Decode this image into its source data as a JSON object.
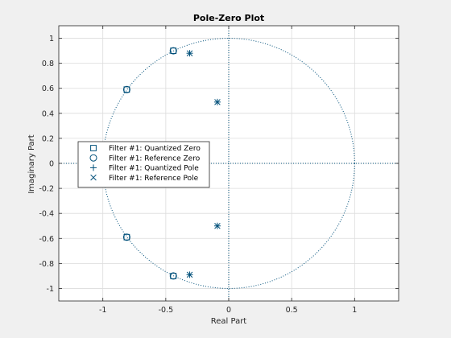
{
  "colors": {
    "figure_bg": "#f0f0f0",
    "axes_bg": "#ffffff",
    "marker": "#00507a",
    "grid": "#dcdcdc",
    "axis": "#262626"
  },
  "chart_data": {
    "type": "scatter",
    "title": "Pole-Zero Plot",
    "xlabel": "Real Part",
    "ylabel": "Imaginary Part",
    "xlim": [
      -1.35,
      1.35
    ],
    "ylim": [
      -1.1,
      1.1
    ],
    "xticks": [
      -1,
      -0.5,
      0,
      0.5,
      1
    ],
    "xtick_labels": [
      "-1",
      "-0.5",
      "0",
      "0.5",
      "1"
    ],
    "yticks": [
      1,
      0.8,
      0.6,
      0.4,
      0.2,
      0,
      -0.2,
      -0.4,
      -0.6,
      -0.8,
      -1
    ],
    "ytick_labels": [
      "1",
      "0.8",
      "0.6",
      "0.4",
      "0.2",
      "0",
      "-0.2",
      "-0.4",
      "-0.6",
      "-0.8",
      "-1"
    ],
    "grid": true,
    "unit_circle": true,
    "legend_location": "middle-left",
    "series": [
      {
        "name": "Filter #1: Quantized Zero",
        "marker": "square",
        "points": [
          [
            -0.44,
            0.9
          ],
          [
            -0.81,
            0.59
          ],
          [
            -0.81,
            -0.59
          ],
          [
            -0.44,
            -0.9
          ]
        ]
      },
      {
        "name": "Filter #1: Reference Zero",
        "marker": "circle",
        "points": [
          [
            -0.44,
            0.9
          ],
          [
            -0.81,
            0.59
          ],
          [
            -0.81,
            -0.59
          ],
          [
            -0.44,
            -0.9
          ]
        ]
      },
      {
        "name": "Filter #1: Quantized Pole",
        "marker": "plus",
        "points": [
          [
            -0.31,
            0.88
          ],
          [
            -0.09,
            0.49
          ],
          [
            -0.09,
            -0.5
          ],
          [
            -0.31,
            -0.89
          ]
        ]
      },
      {
        "name": "Filter #1: Reference Pole",
        "marker": "x",
        "points": [
          [
            -0.31,
            0.88
          ],
          [
            -0.09,
            0.49
          ],
          [
            -0.09,
            -0.5
          ],
          [
            -0.31,
            -0.89
          ]
        ]
      }
    ]
  }
}
